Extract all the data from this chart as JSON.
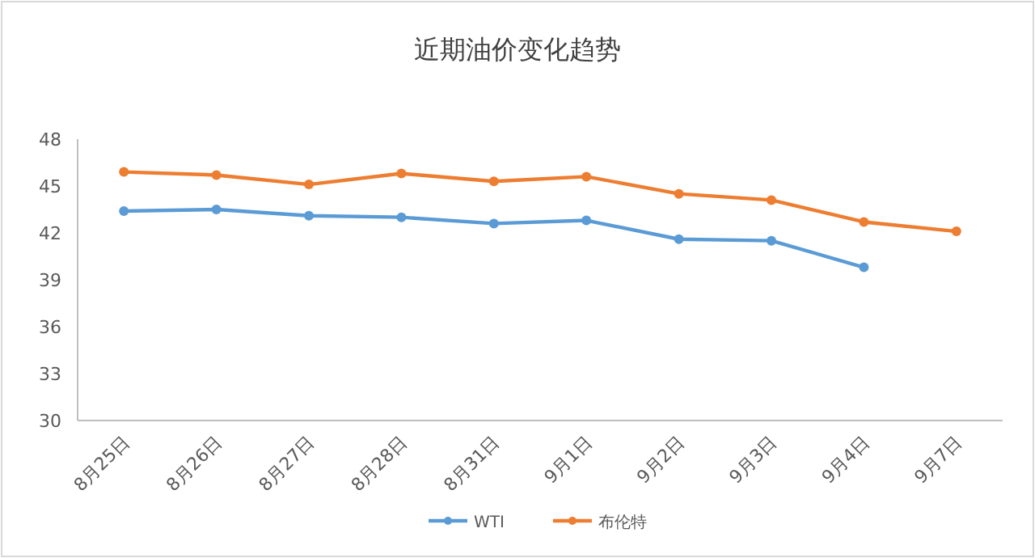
{
  "chart_data": {
    "type": "line",
    "title": "近期油价变化趋势",
    "categories": [
      "8月25日",
      "8月26日",
      "8月27日",
      "8月28日",
      "8月31日",
      "9月1日",
      "9月2日",
      "9月3日",
      "9月4日",
      "9月7日"
    ],
    "series": [
      {
        "name": "WTI",
        "color": "#5b9bd5",
        "values": [
          43.4,
          43.5,
          43.1,
          43.0,
          42.6,
          42.8,
          41.6,
          41.5,
          39.8,
          null
        ]
      },
      {
        "name": "布伦特",
        "color": "#ed7d31",
        "values": [
          45.9,
          45.7,
          45.1,
          45.8,
          45.3,
          45.6,
          44.5,
          44.1,
          42.7,
          42.1
        ]
      }
    ],
    "ylim": [
      30,
      48
    ],
    "yticks": [
      30,
      33,
      36,
      39,
      42,
      45,
      48
    ],
    "grid": false,
    "legend": "bottom",
    "marker": "circle",
    "line_style": "solid"
  }
}
